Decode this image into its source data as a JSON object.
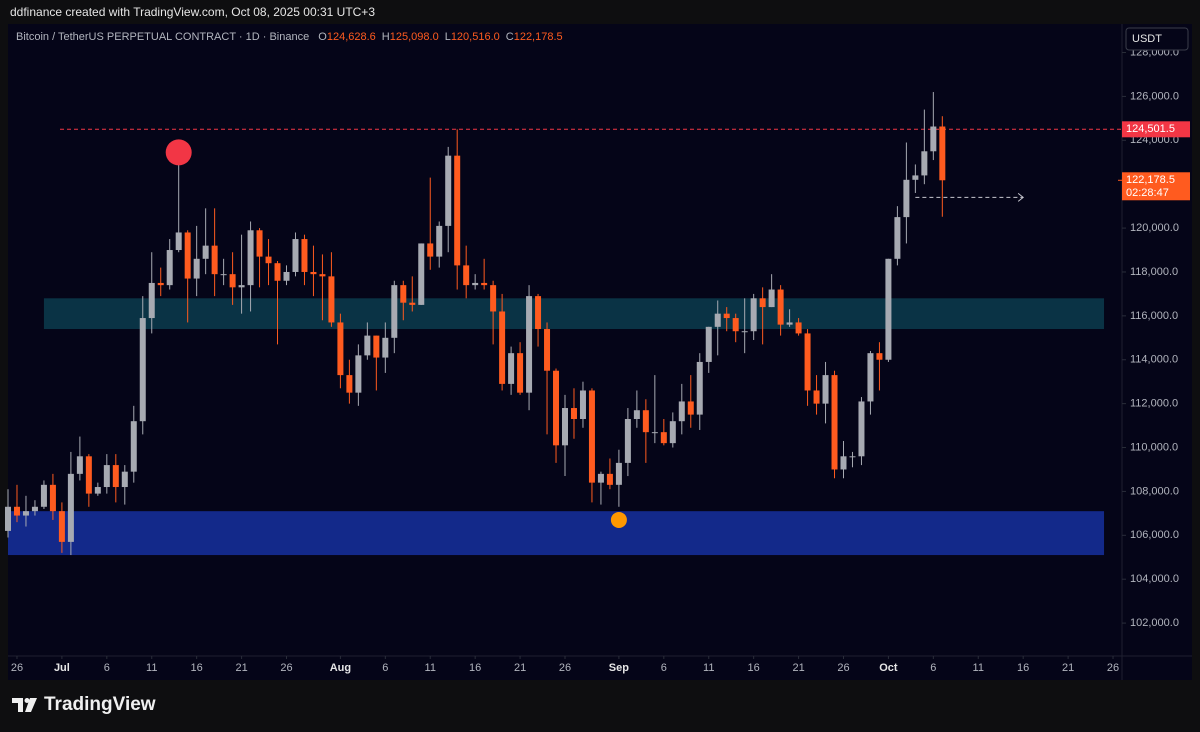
{
  "header": {
    "text": "ddfinance created with TradingView.com, Oct 08, 2025 00:31 UTC+3"
  },
  "brand": {
    "text": "TradingView"
  },
  "chart_data": {
    "type": "candlestick",
    "title": "Bitcoin / TetherUS PERPETUAL CONTRACT · 1D · Binance",
    "ohlc_legend": [
      {
        "key": "O",
        "value": "124,628.6"
      },
      {
        "key": "H",
        "value": "125,098.0"
      },
      {
        "key": "L",
        "value": "120,516.0"
      },
      {
        "key": "C",
        "value": "122,178.5"
      }
    ],
    "currency": "USDT",
    "up_color": "#a7aab2",
    "down_color": "#ff5b1f",
    "x": [
      "2025-06-25",
      "2025-06-26",
      "2025-06-27",
      "2025-06-28",
      "2025-06-29",
      "2025-06-30",
      "2025-07-01",
      "2025-07-02",
      "2025-07-03",
      "2025-07-04",
      "2025-07-05",
      "2025-07-06",
      "2025-07-07",
      "2025-07-08",
      "2025-07-09",
      "2025-07-10",
      "2025-07-11",
      "2025-07-12",
      "2025-07-13",
      "2025-07-14",
      "2025-07-15",
      "2025-07-16",
      "2025-07-17",
      "2025-07-18",
      "2025-07-19",
      "2025-07-20",
      "2025-07-21",
      "2025-07-22",
      "2025-07-23",
      "2025-07-24",
      "2025-07-25",
      "2025-07-26",
      "2025-07-27",
      "2025-07-28",
      "2025-07-29",
      "2025-07-30",
      "2025-07-31",
      "2025-08-01",
      "2025-08-02",
      "2025-08-03",
      "2025-08-04",
      "2025-08-05",
      "2025-08-06",
      "2025-08-07",
      "2025-08-08",
      "2025-08-09",
      "2025-08-10",
      "2025-08-11",
      "2025-08-12",
      "2025-08-13",
      "2025-08-14",
      "2025-08-15",
      "2025-08-16",
      "2025-08-17",
      "2025-08-18",
      "2025-08-19",
      "2025-08-20",
      "2025-08-21",
      "2025-08-22",
      "2025-08-23",
      "2025-08-24",
      "2025-08-25",
      "2025-08-26",
      "2025-08-27",
      "2025-08-28",
      "2025-08-29",
      "2025-08-30",
      "2025-08-31",
      "2025-09-01",
      "2025-09-02",
      "2025-09-03",
      "2025-09-04",
      "2025-09-05",
      "2025-09-06",
      "2025-09-07",
      "2025-09-08",
      "2025-09-09",
      "2025-09-10",
      "2025-09-11",
      "2025-09-12",
      "2025-09-13",
      "2025-09-14",
      "2025-09-15",
      "2025-09-16",
      "2025-09-17",
      "2025-09-18",
      "2025-09-19",
      "2025-09-20",
      "2025-09-21",
      "2025-09-22",
      "2025-09-23",
      "2025-09-24",
      "2025-09-25",
      "2025-09-26",
      "2025-09-27",
      "2025-09-28",
      "2025-09-29",
      "2025-09-30",
      "2025-10-01",
      "2025-10-02",
      "2025-10-03",
      "2025-10-04",
      "2025-10-05",
      "2025-10-06",
      "2025-10-07"
    ],
    "open": [
      106200,
      107300,
      106900,
      107100,
      107300,
      108300,
      107100,
      105700,
      108800,
      109600,
      107900,
      108200,
      109200,
      108200,
      108900,
      111200,
      115900,
      117500,
      117400,
      119000,
      119800,
      117700,
      118600,
      119200,
      117900,
      117900,
      117300,
      117400,
      119900,
      118700,
      118400,
      117600,
      118000,
      119500,
      118000,
      117900,
      117800,
      115700,
      113300,
      112500,
      114200,
      115100,
      114100,
      115000,
      117400,
      116600,
      116500,
      119300,
      118700,
      120100,
      123300,
      118300,
      117400,
      117500,
      117400,
      116200,
      112900,
      114300,
      112500,
      116900,
      115400,
      113500,
      110100,
      111800,
      111300,
      112600,
      108400,
      108800,
      108300,
      109300,
      111300,
      111700,
      110700,
      110700,
      110200,
      111200,
      112100,
      111500,
      113900,
      115500,
      116100,
      115900,
      115300,
      115300,
      116800,
      116400,
      117200,
      115600,
      115700,
      115200,
      112600,
      112000,
      113300,
      109000,
      109600,
      109600,
      112100,
      114300,
      114000,
      118600,
      120500,
      122200,
      122400,
      123500,
      124628.6
    ],
    "high": [
      108100,
      108300,
      107800,
      107600,
      108500,
      108800,
      107500,
      109800,
      110500,
      109700,
      108400,
      109700,
      109700,
      109200,
      111900,
      116900,
      118900,
      118200,
      119500,
      123200,
      119900,
      120100,
      120900,
      120900,
      118600,
      118900,
      119700,
      120300,
      120000,
      119500,
      118500,
      118300,
      119800,
      119700,
      119200,
      118800,
      118900,
      116100,
      114000,
      114700,
      115700,
      115100,
      115700,
      117600,
      117600,
      117800,
      119300,
      122300,
      120300,
      123700,
      124500,
      119200,
      117900,
      118600,
      117600,
      117000,
      114600,
      114800,
      117400,
      117000,
      115700,
      113600,
      112400,
      112700,
      113000,
      112700,
      108900,
      109500,
      109900,
      111800,
      112600,
      112200,
      113300,
      111300,
      111600,
      112900,
      113300,
      114300,
      115500,
      116700,
      116400,
      116100,
      116800,
      117000,
      117300,
      117900,
      117400,
      116300,
      115900,
      115400,
      113300,
      113900,
      113500,
      110300,
      109800,
      112300,
      114400,
      114800,
      118600,
      121000,
      123900,
      122900,
      125400,
      126200,
      125098
    ],
    "low": [
      105900,
      106600,
      106400,
      106900,
      107200,
      106700,
      105200,
      105100,
      108500,
      107300,
      107800,
      107900,
      107500,
      107400,
      108400,
      110600,
      115200,
      116900,
      117200,
      118900,
      115700,
      116900,
      117900,
      116900,
      117400,
      116500,
      116100,
      116200,
      117300,
      117400,
      114700,
      117400,
      117800,
      117400,
      116900,
      115800,
      115500,
      112700,
      112000,
      111900,
      114000,
      112600,
      113400,
      114300,
      115800,
      116200,
      116500,
      118100,
      118200,
      118900,
      117200,
      116800,
      117200,
      117200,
      114700,
      112600,
      112400,
      112400,
      111700,
      114600,
      110600,
      109300,
      108700,
      110400,
      110900,
      107500,
      107400,
      108100,
      107300,
      108700,
      110900,
      109300,
      110200,
      110100,
      110000,
      110600,
      110900,
      110800,
      113400,
      114200,
      115300,
      114800,
      114300,
      114900,
      114700,
      116400,
      115100,
      115500,
      115100,
      111900,
      111500,
      111100,
      108600,
      108600,
      109100,
      109200,
      111500,
      112600,
      113900,
      118300,
      119300,
      121600,
      122000,
      123100,
      120516
    ],
    "close": [
      107300,
      106900,
      107100,
      107300,
      108300,
      107100,
      105700,
      108800,
      109600,
      107900,
      108200,
      109200,
      108200,
      108900,
      111200,
      115900,
      117500,
      117400,
      119000,
      119800,
      117700,
      118600,
      119200,
      117900,
      117900,
      117300,
      117400,
      119900,
      118700,
      118400,
      117600,
      118000,
      119500,
      118000,
      117900,
      117800,
      115700,
      113300,
      112500,
      114200,
      115100,
      114100,
      115000,
      117400,
      116600,
      116500,
      119300,
      118700,
      120100,
      123300,
      118300,
      117400,
      117500,
      117400,
      116200,
      112900,
      114300,
      112500,
      116900,
      115400,
      113500,
      110100,
      111800,
      111300,
      112600,
      108400,
      108800,
      108300,
      109300,
      111300,
      111700,
      110700,
      110700,
      110200,
      111200,
      112100,
      111500,
      113900,
      115500,
      116100,
      115900,
      115300,
      115300,
      116800,
      116400,
      117200,
      115600,
      115700,
      115200,
      112600,
      112000,
      113300,
      109000,
      109600,
      109600,
      112100,
      114300,
      114000,
      118600,
      120500,
      122200,
      122400,
      123500,
      124628.6,
      122178.5
    ],
    "xlim": [
      "2025-06-25",
      "2025-10-27"
    ],
    "xticks": [
      {
        "value": "2025-06-26",
        "label": "26"
      },
      {
        "value": "2025-07-01",
        "label": "Jul"
      },
      {
        "value": "2025-07-06",
        "label": "6"
      },
      {
        "value": "2025-07-11",
        "label": "11"
      },
      {
        "value": "2025-07-16",
        "label": "16"
      },
      {
        "value": "2025-07-21",
        "label": "21"
      },
      {
        "value": "2025-07-26",
        "label": "26"
      },
      {
        "value": "2025-08-01",
        "label": "Aug"
      },
      {
        "value": "2025-08-06",
        "label": "6"
      },
      {
        "value": "2025-08-11",
        "label": "11"
      },
      {
        "value": "2025-08-16",
        "label": "16"
      },
      {
        "value": "2025-08-21",
        "label": "21"
      },
      {
        "value": "2025-08-26",
        "label": "26"
      },
      {
        "value": "2025-09-01",
        "label": "Sep"
      },
      {
        "value": "2025-09-06",
        "label": "6"
      },
      {
        "value": "2025-09-11",
        "label": "11"
      },
      {
        "value": "2025-09-16",
        "label": "16"
      },
      {
        "value": "2025-09-21",
        "label": "21"
      },
      {
        "value": "2025-09-26",
        "label": "26"
      },
      {
        "value": "2025-10-01",
        "label": "Oct"
      },
      {
        "value": "2025-10-06",
        "label": "6"
      },
      {
        "value": "2025-10-11",
        "label": "11"
      },
      {
        "value": "2025-10-16",
        "label": "16"
      },
      {
        "value": "2025-10-21",
        "label": "21"
      },
      {
        "value": "2025-10-26",
        "label": "26"
      }
    ],
    "ylim": [
      100500,
      129300
    ],
    "yticks": [
      {
        "value": 102000,
        "label": "102,000.0"
      },
      {
        "value": 104000,
        "label": "104,000.0"
      },
      {
        "value": 106000,
        "label": "106,000.0"
      },
      {
        "value": 108000,
        "label": "108,000.0"
      },
      {
        "value": 110000,
        "label": "110,000.0"
      },
      {
        "value": 112000,
        "label": "112,000.0"
      },
      {
        "value": 114000,
        "label": "114,000.0"
      },
      {
        "value": 116000,
        "label": "116,000.0"
      },
      {
        "value": 118000,
        "label": "118,000.0"
      },
      {
        "value": 120000,
        "label": "120,000.0"
      },
      {
        "value": 122000,
        "label": "122,000.0"
      },
      {
        "value": 124000,
        "label": "124,000.0"
      },
      {
        "value": 126000,
        "label": "126,000.0"
      },
      {
        "value": 128000,
        "label": "128,000.0"
      }
    ],
    "zones": [
      {
        "x": [
          "2025-06-29",
          "2025-10-25"
        ],
        "values": [
          115400,
          116800
        ],
        "color": "#0a3345"
      },
      {
        "x": [
          "2025-06-25",
          "2025-10-25"
        ],
        "values": [
          105100,
          107100
        ],
        "color": "#13298a"
      }
    ],
    "hline": {
      "value": 124501.5,
      "label": "124,501.5",
      "color": "#f23645"
    },
    "last_price": {
      "value": 122178.5,
      "label": "122,178.5",
      "countdown": "02:28:47",
      "color": "#ff5b1f"
    },
    "markers": [
      {
        "x": "2025-07-14",
        "value": 123450,
        "color": "#f23645"
      },
      {
        "x": "2025-09-01",
        "value": 106700,
        "color": "#ff9800"
      }
    ],
    "projection": {
      "x": [
        "2025-10-04",
        "2025-10-16"
      ],
      "values": [
        121400,
        121400
      ]
    }
  }
}
